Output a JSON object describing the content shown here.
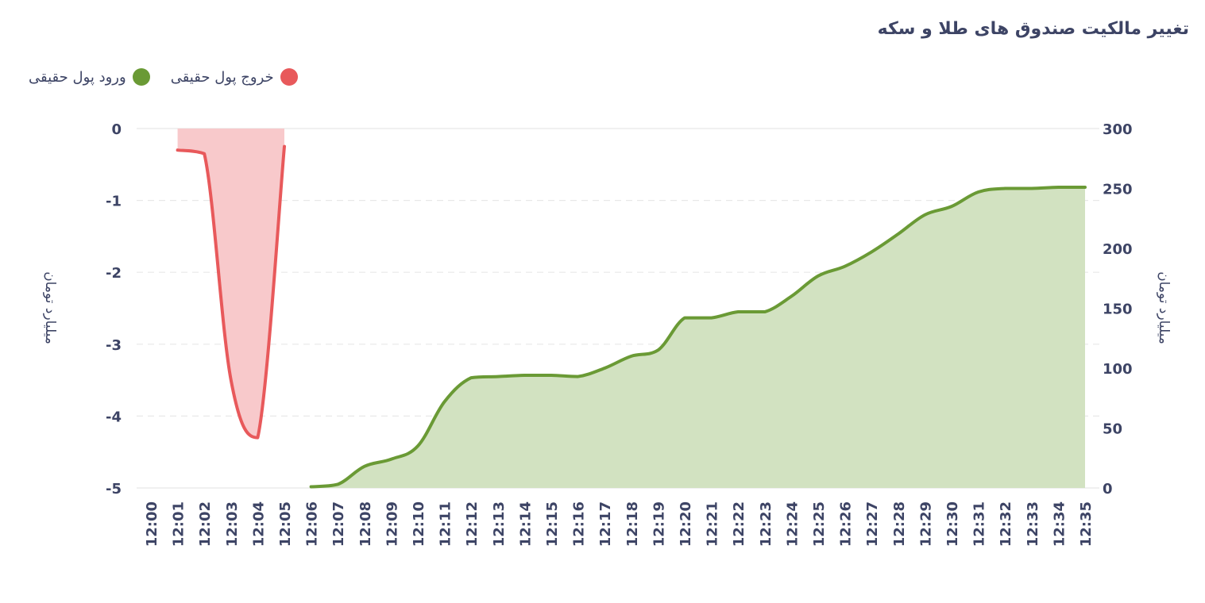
{
  "chart_data": {
    "type": "area",
    "title": "تغییر مالکیت صندوق های طلا و سکه",
    "legend_position": "top-left",
    "grid": true,
    "x": [
      "12:00",
      "12:01",
      "12:02",
      "12:03",
      "12:04",
      "12:05",
      "12:06",
      "12:07",
      "12:08",
      "12:09",
      "12:10",
      "12:11",
      "12:12",
      "12:13",
      "12:14",
      "12:15",
      "12:16",
      "12:17",
      "12:18",
      "12:19",
      "12:20",
      "12:21",
      "12:22",
      "12:23",
      "12:24",
      "12:25",
      "12:26",
      "12:27",
      "12:28",
      "12:29",
      "12:30",
      "12:31",
      "12:32",
      "12:33",
      "12:34",
      "12:35"
    ],
    "left_axis": {
      "title": "میلیارد تومان",
      "ylim": [
        -5,
        0
      ],
      "ticks": [
        "0",
        "-1",
        "-2",
        "-3",
        "-4",
        "-5"
      ]
    },
    "right_axis": {
      "title": "میلیارد تومان",
      "ylim": [
        0,
        300
      ],
      "ticks": [
        "300",
        "250",
        "200",
        "150",
        "100",
        "50",
        "0"
      ]
    },
    "series": [
      {
        "name": "ورود پول حقیقی",
        "axis": "right",
        "color": "#6a9a35",
        "fill": "#d2e2c1",
        "values": [
          null,
          null,
          null,
          null,
          null,
          null,
          1,
          3,
          18,
          24,
          35,
          72,
          92,
          93,
          94,
          94,
          93,
          100,
          110,
          115,
          142,
          142,
          147,
          147,
          160,
          177,
          185,
          197,
          212,
          228,
          235,
          247,
          250,
          250,
          251,
          251
        ]
      },
      {
        "name": "خروج پول حقیقی",
        "axis": "left",
        "color": "#e8595b",
        "fill": "#f8c9cb",
        "values": [
          null,
          -0.3,
          -0.35,
          -3.5,
          -4.3,
          -0.25,
          null,
          null,
          null,
          null,
          null,
          null,
          null,
          null,
          null,
          null,
          null,
          null,
          null,
          null,
          null,
          null,
          null,
          null,
          null,
          null,
          null,
          null,
          null,
          null,
          null,
          null,
          null,
          null,
          null,
          null
        ]
      }
    ]
  }
}
